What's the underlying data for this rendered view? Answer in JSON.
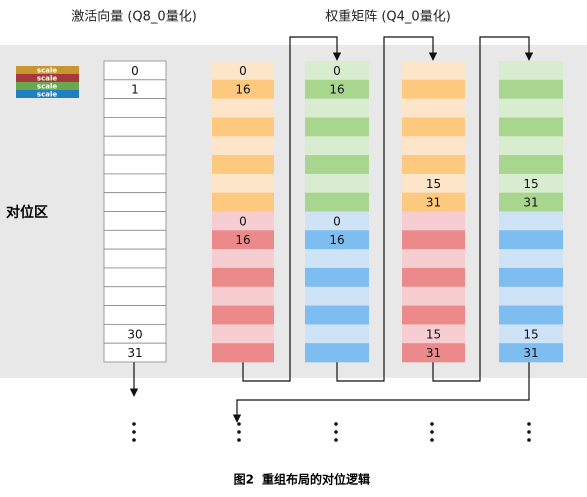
{
  "labels": {
    "activation": "激活向量 (Q8_0量化)",
    "weight": "权重矩阵 (Q4_0量化)",
    "zone": "对位区"
  },
  "scale_legend": [
    "scale",
    "scale",
    "scale",
    "scale"
  ],
  "activation": [
    "0",
    "1",
    null,
    null,
    null,
    null,
    null,
    null,
    null,
    null,
    null,
    null,
    null,
    null,
    "30",
    "31"
  ],
  "weight_columns": [
    {
      "cells": [
        "0",
        "16",
        null,
        null,
        null,
        null,
        null,
        null,
        "0",
        "16",
        null,
        null,
        null,
        null,
        null,
        null
      ]
    },
    {
      "cells": [
        "0",
        "16",
        null,
        null,
        null,
        null,
        null,
        null,
        "0",
        "16",
        null,
        null,
        null,
        null,
        null,
        null
      ]
    },
    {
      "cells": [
        null,
        null,
        null,
        null,
        null,
        null,
        "15",
        "31",
        null,
        null,
        null,
        null,
        null,
        null,
        "15",
        "31"
      ]
    },
    {
      "cells": [
        null,
        null,
        null,
        null,
        null,
        null,
        "15",
        "31",
        null,
        null,
        null,
        null,
        null,
        null,
        "15",
        "31"
      ]
    }
  ],
  "caption": {
    "number": "图2",
    "text": "重组布局的对位逻辑"
  }
}
